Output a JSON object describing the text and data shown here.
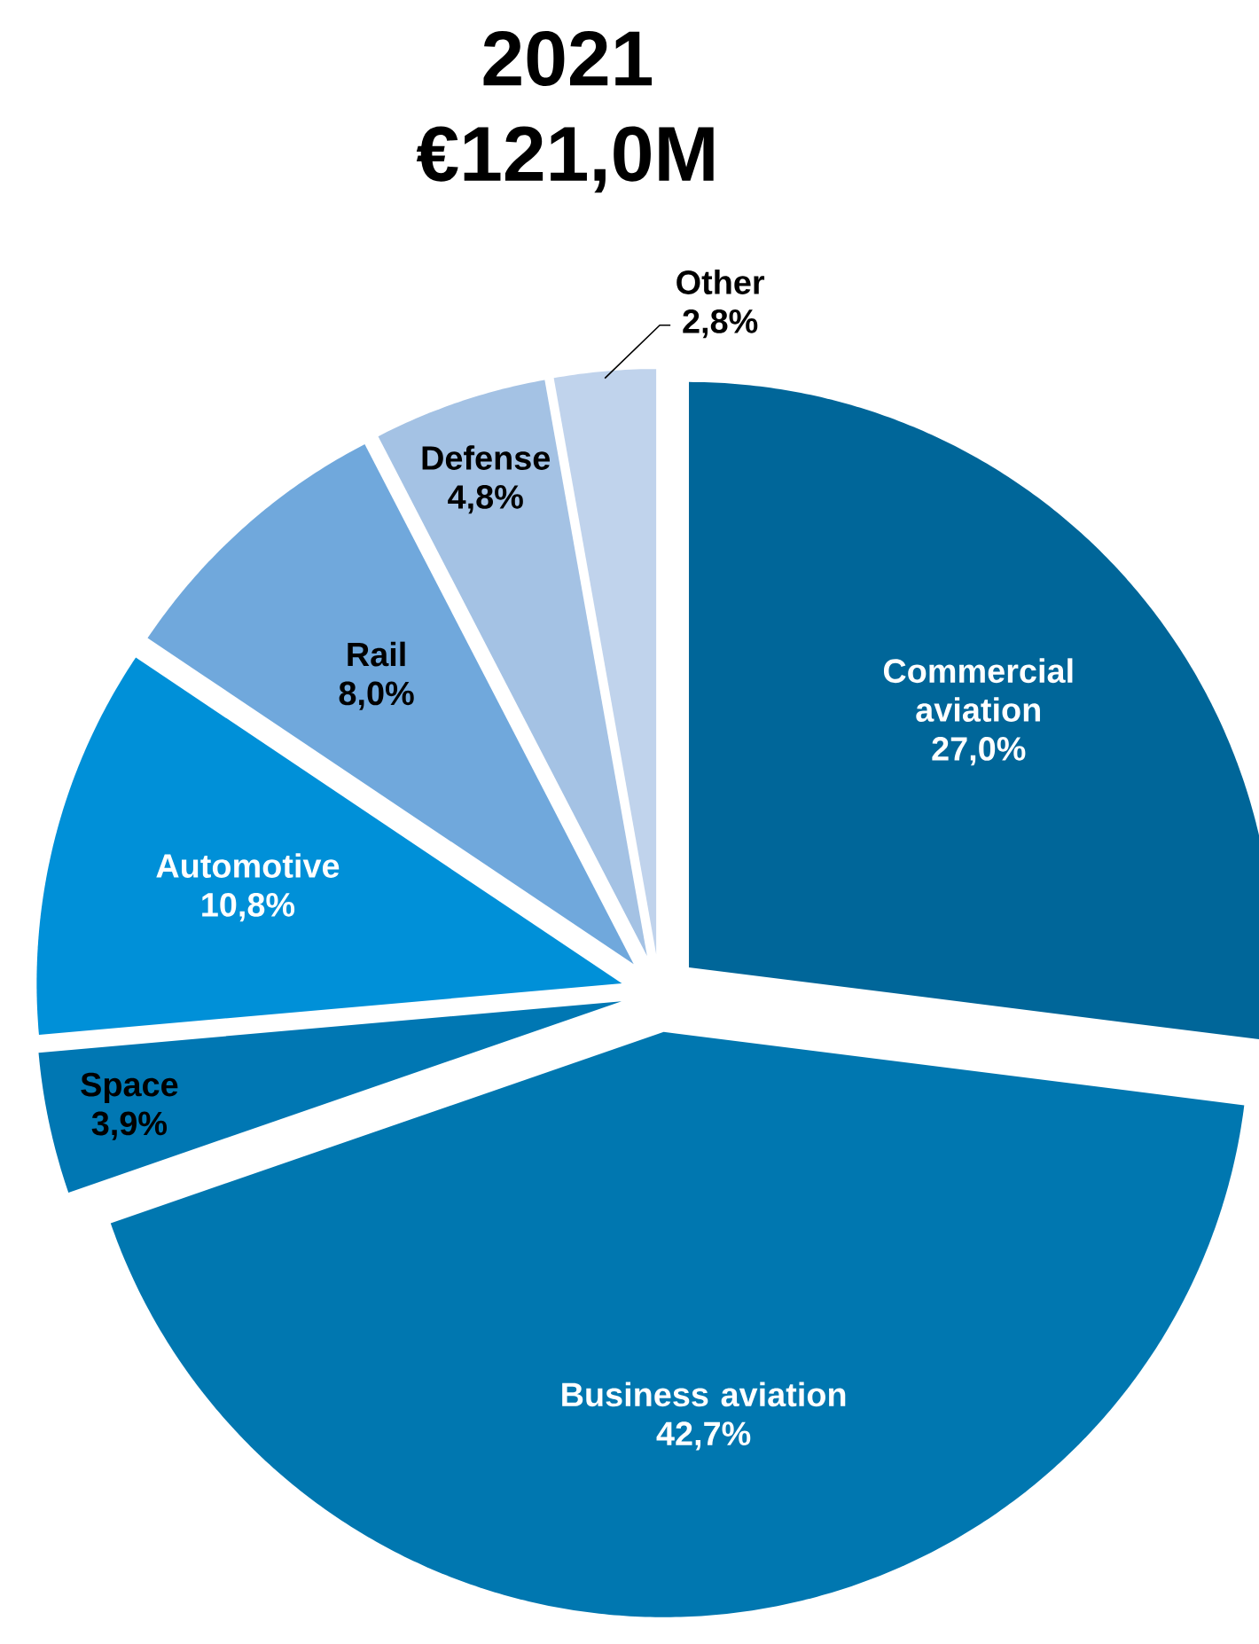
{
  "chart_data": {
    "type": "pie",
    "title": "2021",
    "subtitle": "€121,0M",
    "categories": [
      "Commercial aviation",
      "Business aviation",
      "Space",
      "Automotive",
      "Rail",
      "Defense",
      "Other"
    ],
    "values": [
      27.0,
      42.7,
      3.9,
      10.8,
      8.0,
      4.8,
      2.8
    ],
    "value_labels": [
      "27,0%",
      "42,7%",
      "3,9%",
      "10,8%",
      "8,0%",
      "4,8%",
      "2,8%"
    ],
    "colors": [
      "#006699",
      "#0077b0",
      "#0077b3",
      "#0090d8",
      "#70a8dc",
      "#a4c2e4",
      "#c0d3ec"
    ]
  }
}
